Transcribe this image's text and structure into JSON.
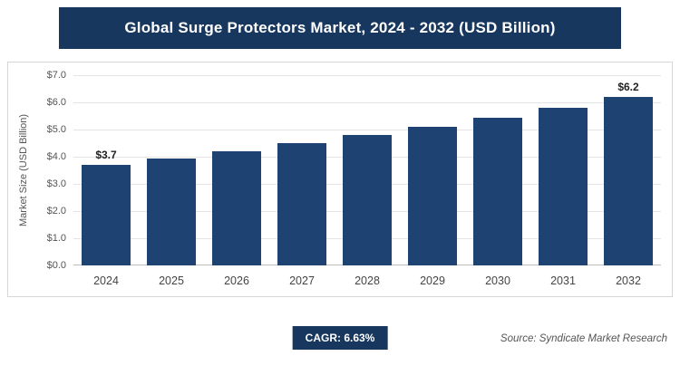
{
  "header": {
    "title": "Global Surge Protectors Market, 2024 - 2032 (USD Billion)"
  },
  "colors": {
    "navy": "#17375E",
    "bar": "#1E4272",
    "grid": "#E4E4E4",
    "baseline": "#BDBDBD",
    "border": "#D6D6D6"
  },
  "chart_data": {
    "type": "bar",
    "title": "Global Surge Protectors Market, 2024 - 2032 (USD Billion)",
    "categories": [
      "2024",
      "2025",
      "2026",
      "2027",
      "2028",
      "2029",
      "2030",
      "2031",
      "2032"
    ],
    "values": [
      3.7,
      3.95,
      4.2,
      4.5,
      4.8,
      5.1,
      5.45,
      5.8,
      6.2
    ],
    "xlabel": "",
    "ylabel": "Market Size (USD Billion)",
    "ylim": [
      0,
      7
    ],
    "ytick_labels": [
      "$0.0",
      "$1.0",
      "$2.0",
      "$3.0",
      "$4.0",
      "$5.0",
      "$6.0",
      "$7.0"
    ],
    "grid": true,
    "legend": "none",
    "annotations": [
      {
        "category": "2024",
        "text": "$3.7"
      },
      {
        "category": "2032",
        "text": "$6.2"
      }
    ]
  },
  "footer": {
    "cagr": "CAGR: 6.63%",
    "source": "Source: Syndicate Market Research"
  }
}
